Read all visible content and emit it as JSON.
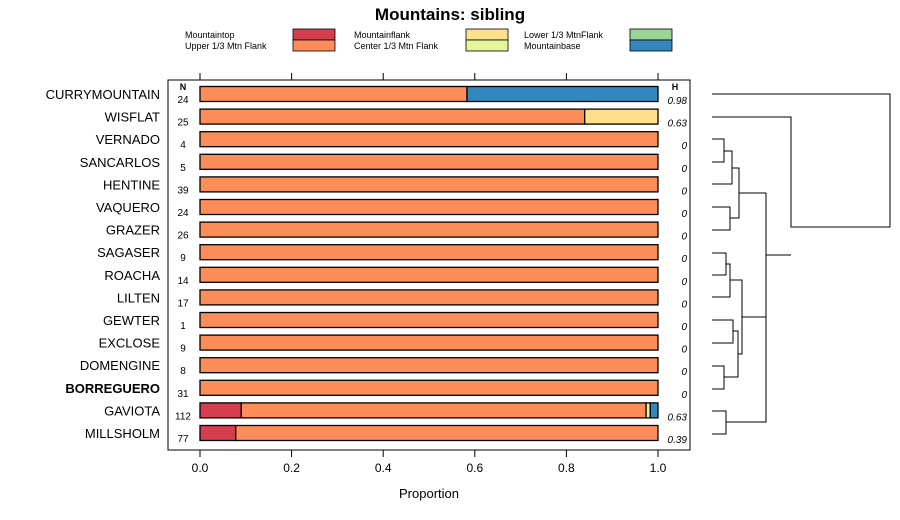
{
  "chart_data": {
    "type": "bar",
    "orientation": "horizontal",
    "stacked": true,
    "title": "Mountains: sibling",
    "xlabel": "Proportion",
    "ylabel": "",
    "xlim": [
      0,
      1
    ],
    "xticks": [
      "0.0",
      "0.2",
      "0.4",
      "0.6",
      "0.8",
      "1.0"
    ],
    "n_header": "N",
    "h_header": "H",
    "legend": [
      {
        "key": "mountaintop",
        "label": "Mountaintop",
        "color": "#d53e4f"
      },
      {
        "key": "upper",
        "label": "Upper 1/3 Mtn Flank",
        "color": "#fc8d59"
      },
      {
        "key": "flank",
        "label": "Mountainflank",
        "color": "#fee08b"
      },
      {
        "key": "center",
        "label": "Center 1/3 Mtn Flank",
        "color": "#e6f598"
      },
      {
        "key": "lower",
        "label": "Lower 1/3 MtnFlank",
        "color": "#99d594"
      },
      {
        "key": "base",
        "label": "Mountainbase",
        "color": "#3288bd"
      }
    ],
    "categories": [
      "CURRYMOUNTAIN",
      "WISFLAT",
      "VERNADO",
      "SANCARLOS",
      "HENTINE",
      "VAQUERO",
      "GRAZER",
      "SAGASER",
      "ROACHA",
      "LILTEN",
      "GEWTER",
      "EXCLOSE",
      "DOMENGINE",
      "BORREGUERO",
      "GAVIOTA",
      "MILLSHOLM"
    ],
    "highlight": "BORREGUERO",
    "n": [
      "24",
      "25",
      "4",
      "5",
      "39",
      "24",
      "26",
      "9",
      "14",
      "17",
      "1",
      "9",
      "8",
      "31",
      "112",
      "77"
    ],
    "h": [
      "0.98",
      "0.63",
      "0",
      "0",
      "0",
      "0",
      "0",
      "0",
      "0",
      "0",
      "0",
      "0",
      "0",
      "0",
      "0.63",
      "0.39"
    ],
    "series": [
      {
        "name": "Mountaintop",
        "values": [
          0,
          0,
          0,
          0,
          0,
          0,
          0,
          0,
          0,
          0,
          0,
          0,
          0,
          0,
          0.09,
          0.078
        ]
      },
      {
        "name": "Upper 1/3 Mtn Flank",
        "values": [
          0.583,
          0.84,
          1,
          1,
          1,
          1,
          1,
          1,
          1,
          1,
          1,
          1,
          1,
          1,
          0.884,
          0.922
        ]
      },
      {
        "name": "Mountainflank",
        "values": [
          0,
          0.16,
          0,
          0,
          0,
          0,
          0,
          0,
          0,
          0,
          0,
          0,
          0,
          0,
          0,
          0
        ]
      },
      {
        "name": "Center 1/3 Mtn Flank",
        "values": [
          0,
          0,
          0,
          0,
          0,
          0,
          0,
          0,
          0,
          0,
          0,
          0,
          0,
          0,
          0.009,
          0
        ]
      },
      {
        "name": "Lower 1/3 MtnFlank",
        "values": [
          0,
          0,
          0,
          0,
          0,
          0,
          0,
          0,
          0,
          0,
          0,
          0,
          0,
          0,
          0,
          0
        ]
      },
      {
        "name": "Mountainbase",
        "values": [
          0.417,
          0,
          0,
          0,
          0,
          0,
          0,
          0,
          0,
          0,
          0,
          0,
          0,
          0,
          0.017,
          0
        ]
      }
    ]
  }
}
